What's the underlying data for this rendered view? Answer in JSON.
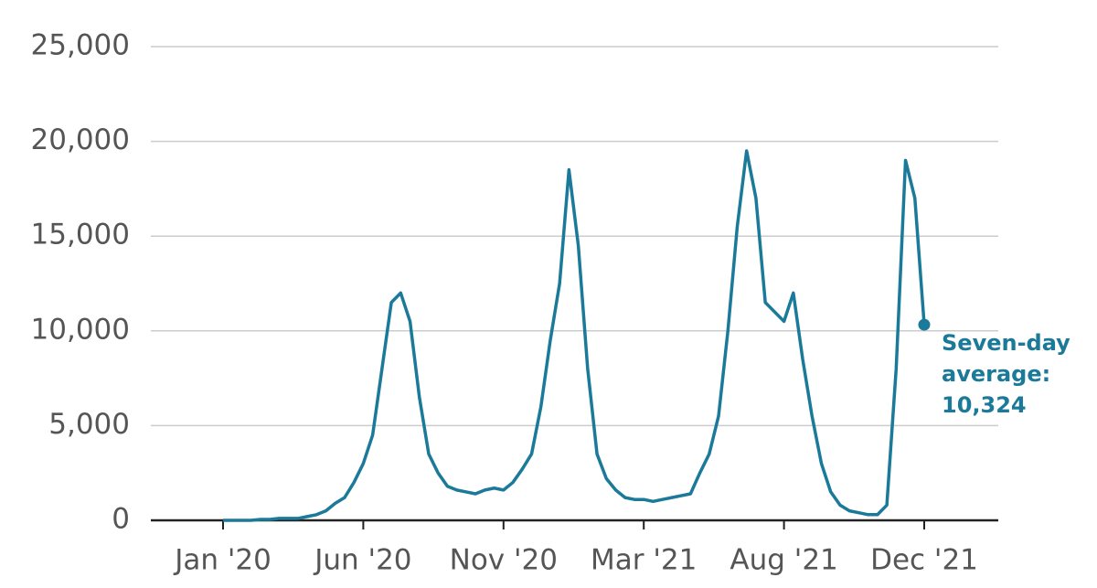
{
  "chart_data": {
    "type": "line",
    "categories": [
      "Jan '20",
      null,
      null,
      null,
      null,
      null,
      null,
      null,
      null,
      null,
      null,
      null,
      null,
      null,
      null,
      "Jun '20",
      null,
      null,
      null,
      null,
      null,
      null,
      null,
      null,
      null,
      null,
      null,
      null,
      null,
      null,
      "Nov '20",
      null,
      null,
      null,
      null,
      null,
      null,
      null,
      null,
      null,
      null,
      null,
      null,
      null,
      null,
      "Mar '21",
      null,
      null,
      null,
      null,
      null,
      null,
      null,
      null,
      null,
      null,
      null,
      null,
      null,
      null,
      "Aug '21",
      null,
      null,
      null,
      null,
      null,
      null,
      null,
      null,
      null,
      null,
      null,
      null,
      null,
      null,
      "Dec '21"
    ],
    "series": [
      {
        "name": "Seven-day average",
        "color": "#1b7a99",
        "values": [
          0,
          0,
          0,
          0,
          50,
          50,
          100,
          100,
          100,
          200,
          300,
          500,
          900,
          1200,
          2000,
          3000,
          4500,
          8000,
          11500,
          12000,
          10500,
          6500,
          3500,
          2500,
          1800,
          1600,
          1500,
          1400,
          1600,
          1700,
          1600,
          2000,
          2700,
          3500,
          6000,
          9500,
          12500,
          18500,
          14500,
          8000,
          3500,
          2200,
          1600,
          1200,
          1100,
          1100,
          1000,
          1100,
          1200,
          1300,
          1400,
          2500,
          3500,
          5500,
          10000,
          15500,
          19500,
          17000,
          11500,
          11000,
          10500,
          12000,
          8500,
          5500,
          3000,
          1500,
          800,
          500,
          400,
          300,
          300,
          800,
          8000,
          19000,
          17000,
          10324
        ]
      }
    ],
    "annotation": [
      "Seven-day",
      "average:",
      "10,324"
    ],
    "ylim": [
      0,
      25000
    ],
    "yticks": [
      0,
      {
        "value": 5000,
        "label": "5,000"
      },
      {
        "value": 10000,
        "label": "10,000"
      },
      {
        "value": 15000,
        "label": "15,000"
      },
      {
        "value": 20000,
        "label": "20,000"
      },
      {
        "value": 25000,
        "label": "25,000"
      }
    ],
    "grid": true
  }
}
